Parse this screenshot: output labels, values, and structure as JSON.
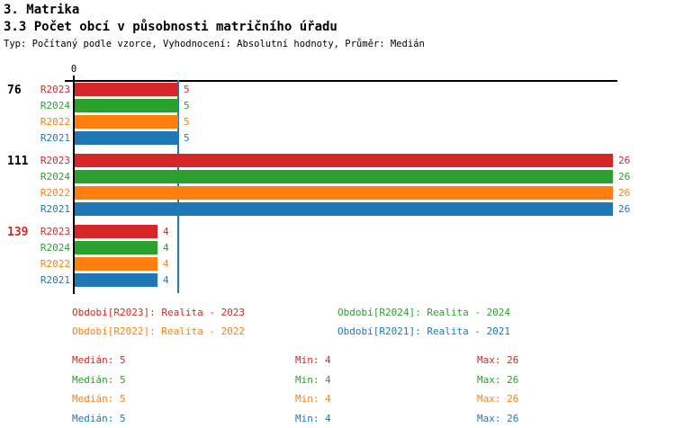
{
  "header": {
    "title": "3. Matrika",
    "subtitle": "3.3 Počet obcí v působnosti matričního úřadu",
    "meta": "Typ: Počítaný podle vzorce, Vyhodnocení: Absolutní hodnoty, Průměr: Medián"
  },
  "chart_data": {
    "type": "bar",
    "orientation": "horizontal",
    "title": "3.3 Počet obcí v působnosti matričního úřadu",
    "xlim": [
      0,
      26
    ],
    "axis_zero_label": "0",
    "grid": false,
    "median_reference_line": {
      "value": 5,
      "color": "#2878b4"
    },
    "categories": [
      "76",
      "111",
      "139"
    ],
    "category_label_colors": [
      "#000000",
      "#000000",
      "#d62728"
    ],
    "series": [
      {
        "name": "R2023",
        "color": "#d62728",
        "values": [
          5,
          26,
          4
        ]
      },
      {
        "name": "R2024",
        "color": "#2ca02c",
        "values": [
          5,
          26,
          4
        ]
      },
      {
        "name": "R2022",
        "color": "#ff7f0e",
        "values": [
          5,
          26,
          4
        ]
      },
      {
        "name": "R2021",
        "color": "#1f77b4",
        "values": [
          5,
          26,
          4
        ]
      }
    ]
  },
  "legend": {
    "items": [
      {
        "label": "Období[R2023]: Realita - 2023",
        "color": "#d62728",
        "row": 0,
        "col": 0
      },
      {
        "label": "Období[R2024]: Realita - 2024",
        "color": "#2ca02c",
        "row": 0,
        "col": 1
      },
      {
        "label": "Období[R2022]: Realita - 2022",
        "color": "#ff7f0e",
        "row": 1,
        "col": 0
      },
      {
        "label": "Období[R2021]: Realita - 2021",
        "color": "#1f77b4",
        "row": 1,
        "col": 1
      }
    ]
  },
  "stats": {
    "rows": [
      {
        "median": "Medián: 5",
        "min": "Min: 4",
        "max": "Max: 26",
        "color": "#d62728"
      },
      {
        "median": "Medián: 5",
        "min": "Min: 4",
        "max": "Max: 26",
        "color": "#2ca02c"
      },
      {
        "median": "Medián: 5",
        "min": "Min: 4",
        "max": "Max: 26",
        "color": "#ff7f0e"
      },
      {
        "median": "Medián: 5",
        "min": "Min: 4",
        "max": "Max: 26",
        "color": "#1f77b4"
      }
    ]
  }
}
